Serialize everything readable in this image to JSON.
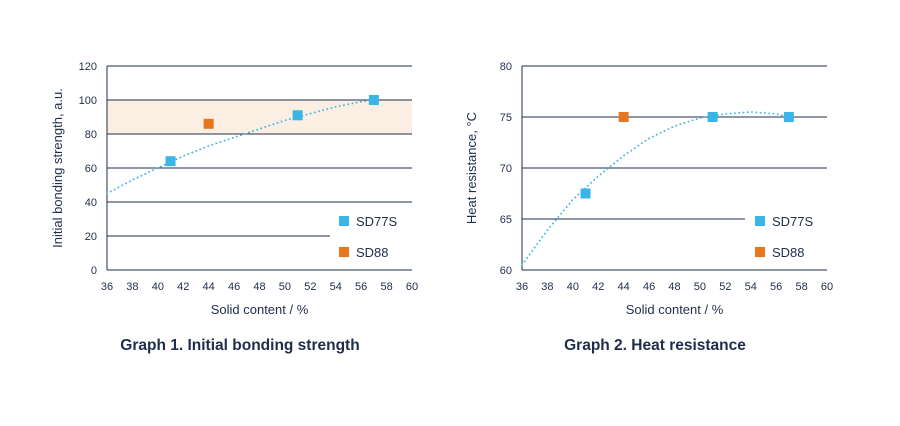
{
  "colors": {
    "text": "#1f2d4d",
    "grid": "#1f2d4d",
    "sd77s": "#3bb4e6",
    "sd88": "#e8761f",
    "band": "#fbeee2",
    "trend": "#3bb4e6"
  },
  "chart_data": [
    {
      "type": "scatter",
      "caption": "Graph 1. Initial bonding strength",
      "xlabel": "Solid content / %",
      "ylabel": "Initial bonding strength, a.u.",
      "xlim": [
        36,
        60
      ],
      "ylim": [
        0,
        120
      ],
      "xticks": [
        "36",
        "38",
        "40",
        "42",
        "44",
        "46",
        "48",
        "50",
        "52",
        "54",
        "56",
        "58",
        "60"
      ],
      "yticks": [
        "0",
        "20",
        "40",
        "60",
        "80",
        "100",
        "120"
      ],
      "band": [
        80,
        100
      ],
      "series": [
        {
          "name": "SD77S",
          "x": [
            41,
            51,
            57
          ],
          "y": [
            64,
            91,
            100
          ]
        },
        {
          "name": "SD88",
          "x": [
            44
          ],
          "y": [
            86
          ]
        }
      ],
      "trendline": {
        "series": "SD77S",
        "x": [
          36,
          38,
          40,
          42,
          44,
          46,
          48,
          50,
          52,
          54,
          56,
          57
        ],
        "y": [
          45,
          53,
          60,
          67,
          73,
          78,
          83,
          88,
          92,
          96,
          99,
          100
        ]
      }
    },
    {
      "type": "scatter",
      "caption": "Graph 2. Heat resistance",
      "xlabel": "Solid content / %",
      "ylabel": "Heat resistance, °C",
      "xlim": [
        36,
        60
      ],
      "ylim": [
        60,
        80
      ],
      "xticks": [
        "36",
        "38",
        "40",
        "42",
        "44",
        "46",
        "48",
        "50",
        "52",
        "54",
        "56",
        "58",
        "60"
      ],
      "yticks": [
        "60",
        "65",
        "70",
        "75",
        "80"
      ],
      "series": [
        {
          "name": "SD77S",
          "x": [
            41,
            51,
            57
          ],
          "y": [
            67.5,
            75,
            75
          ]
        },
        {
          "name": "SD88",
          "x": [
            44
          ],
          "y": [
            75
          ]
        }
      ],
      "trendline": {
        "series": "SD77S",
        "x": [
          36,
          38,
          40,
          42,
          44,
          46,
          48,
          50,
          52,
          54,
          56,
          57
        ],
        "y": [
          60.5,
          63.9,
          66.9,
          69.2,
          71.2,
          72.9,
          74.1,
          74.9,
          75.3,
          75.5,
          75.3,
          75.0
        ]
      }
    }
  ]
}
